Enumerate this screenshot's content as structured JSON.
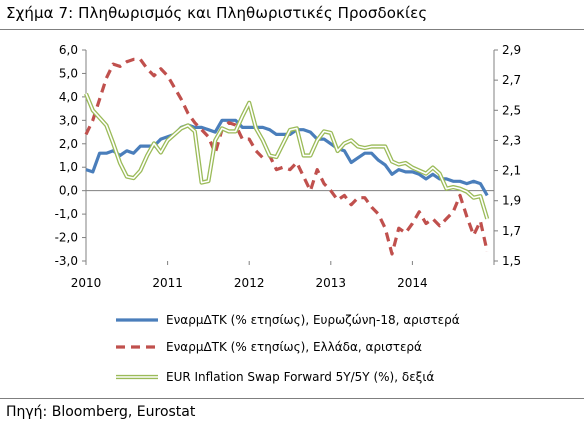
{
  "title": "Σχήμα 7: Πληθωρισμός και Πληθωριστικές Προσδοκίες",
  "source": "Πηγή: Bloomberg, Eurostat",
  "chart_data": {
    "type": "line",
    "x_ticks": [
      "2010",
      "2011",
      "2012",
      "2013",
      "2014"
    ],
    "x_range": [
      2010.0,
      2015.0
    ],
    "y_left": {
      "lim": [
        -3.0,
        6.0
      ],
      "ticks": [
        "6,0",
        "5,0",
        "4,0",
        "3,0",
        "2,0",
        "1,0",
        "0,0",
        "-1,0",
        "-2,0",
        "-3,0"
      ]
    },
    "y_right": {
      "lim": [
        1.5,
        2.9
      ],
      "ticks": [
        "2,9",
        "2,7",
        "2,5",
        "2,3",
        "2,1",
        "1,9",
        "1,7",
        "1,5"
      ]
    },
    "legend_position": "bottom",
    "series": [
      {
        "name": "ΕναρμΔΤΚ (% ετησίως), Ευρωζώνη-18, αριστερά",
        "axis": "left",
        "color": "#4a7ebb",
        "style": "solid",
        "x": [
          2010.0,
          2010.083,
          2010.167,
          2010.25,
          2010.333,
          2010.417,
          2010.5,
          2010.583,
          2010.667,
          2010.75,
          2010.833,
          2010.917,
          2011.0,
          2011.083,
          2011.167,
          2011.25,
          2011.333,
          2011.417,
          2011.5,
          2011.583,
          2011.667,
          2011.75,
          2011.833,
          2011.917,
          2012.0,
          2012.083,
          2012.167,
          2012.25,
          2012.333,
          2012.417,
          2012.5,
          2012.583,
          2012.667,
          2012.75,
          2012.833,
          2012.917,
          2013.0,
          2013.083,
          2013.167,
          2013.25,
          2013.333,
          2013.417,
          2013.5,
          2013.583,
          2013.667,
          2013.75,
          2013.833,
          2013.917,
          2014.0,
          2014.083,
          2014.167,
          2014.25,
          2014.333,
          2014.417,
          2014.5,
          2014.583,
          2014.667,
          2014.75,
          2014.833,
          2014.917
        ],
        "y": [
          0.9,
          0.8,
          1.6,
          1.6,
          1.7,
          1.5,
          1.7,
          1.6,
          1.9,
          1.9,
          1.9,
          2.2,
          2.3,
          2.4,
          2.7,
          2.8,
          2.7,
          2.7,
          2.6,
          2.5,
          3.0,
          3.0,
          3.0,
          2.7,
          2.7,
          2.7,
          2.7,
          2.6,
          2.4,
          2.4,
          2.4,
          2.6,
          2.6,
          2.5,
          2.2,
          2.2,
          2.0,
          1.8,
          1.7,
          1.2,
          1.4,
          1.6,
          1.6,
          1.3,
          1.1,
          0.7,
          0.9,
          0.8,
          0.8,
          0.7,
          0.5,
          0.7,
          0.5,
          0.5,
          0.4,
          0.4,
          0.3,
          0.4,
          0.3,
          -0.2
        ]
      },
      {
        "name": "ΕναρμΔΤΚ (% ετησίως), Ελλάδα, αριστερά",
        "axis": "left",
        "color": "#c0504d",
        "style": "dashed",
        "x": [
          2010.0,
          2010.083,
          2010.167,
          2010.25,
          2010.333,
          2010.417,
          2010.5,
          2010.583,
          2010.667,
          2010.75,
          2010.833,
          2010.917,
          2011.0,
          2011.083,
          2011.167,
          2011.25,
          2011.333,
          2011.417,
          2011.5,
          2011.583,
          2011.667,
          2011.75,
          2011.833,
          2011.917,
          2012.0,
          2012.083,
          2012.167,
          2012.25,
          2012.333,
          2012.417,
          2012.5,
          2012.583,
          2012.667,
          2012.75,
          2012.833,
          2012.917,
          2013.0,
          2013.083,
          2013.167,
          2013.25,
          2013.333,
          2013.417,
          2013.5,
          2013.583,
          2013.667,
          2013.75,
          2013.833,
          2013.917,
          2014.0,
          2014.083,
          2014.167,
          2014.25,
          2014.333,
          2014.417,
          2014.5,
          2014.583,
          2014.667,
          2014.75,
          2014.833,
          2014.917
        ],
        "y": [
          2.4,
          3.0,
          3.9,
          4.8,
          5.4,
          5.3,
          5.5,
          5.6,
          5.6,
          5.2,
          4.9,
          5.2,
          4.9,
          4.4,
          3.9,
          3.3,
          2.9,
          2.6,
          2.3,
          1.6,
          2.6,
          2.9,
          2.8,
          2.2,
          2.2,
          1.7,
          1.4,
          1.5,
          0.9,
          1.0,
          0.9,
          1.2,
          0.6,
          0.0,
          0.9,
          0.3,
          0.0,
          -0.4,
          -0.2,
          -0.6,
          -0.3,
          -0.3,
          -0.7,
          -1.0,
          -1.6,
          -2.7,
          -1.6,
          -1.8,
          -1.4,
          -0.9,
          -1.4,
          -1.2,
          -1.5,
          -1.2,
          -0.9,
          -0.2,
          -1.1,
          -1.9,
          -1.3,
          -2.6
        ]
      },
      {
        "name": "EUR Inflation Swap Forward 5Y/5Y (%), δεξιά",
        "axis": "right",
        "color": "#9bbb59",
        "style": "double",
        "x": [
          2010.0,
          2010.083,
          2010.167,
          2010.25,
          2010.333,
          2010.417,
          2010.5,
          2010.583,
          2010.667,
          2010.75,
          2010.833,
          2010.917,
          2011.0,
          2011.083,
          2011.167,
          2011.25,
          2011.333,
          2011.417,
          2011.5,
          2011.583,
          2011.667,
          2011.75,
          2011.833,
          2011.917,
          2012.0,
          2012.083,
          2012.167,
          2012.25,
          2012.333,
          2012.417,
          2012.5,
          2012.583,
          2012.667,
          2012.75,
          2012.833,
          2012.917,
          2013.0,
          2013.083,
          2013.167,
          2013.25,
          2013.333,
          2013.417,
          2013.5,
          2013.583,
          2013.667,
          2013.75,
          2013.833,
          2013.917,
          2014.0,
          2014.083,
          2014.167,
          2014.25,
          2014.333,
          2014.417,
          2014.5,
          2014.583,
          2014.667,
          2014.75,
          2014.833,
          2014.917
        ],
        "y": [
          2.61,
          2.5,
          2.45,
          2.4,
          2.28,
          2.15,
          2.06,
          2.05,
          2.1,
          2.2,
          2.28,
          2.22,
          2.3,
          2.34,
          2.38,
          2.4,
          2.36,
          2.02,
          2.03,
          2.3,
          2.38,
          2.36,
          2.36,
          2.46,
          2.55,
          2.38,
          2.3,
          2.2,
          2.19,
          2.28,
          2.37,
          2.38,
          2.2,
          2.2,
          2.3,
          2.36,
          2.35,
          2.23,
          2.28,
          2.3,
          2.26,
          2.25,
          2.26,
          2.26,
          2.26,
          2.16,
          2.14,
          2.15,
          2.12,
          2.1,
          2.08,
          2.12,
          2.08,
          1.98,
          1.99,
          1.98,
          1.96,
          1.92,
          1.93,
          1.78
        ]
      }
    ]
  }
}
